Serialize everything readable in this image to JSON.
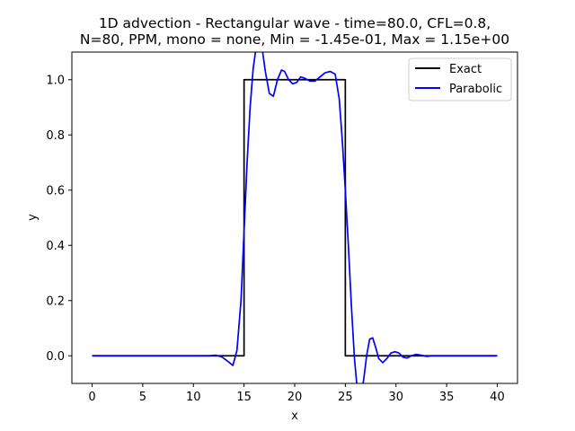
{
  "chart_data": {
    "type": "line",
    "title_line1": "1D advection - Rectangular wave - time=80.0, CFL=0.8,",
    "title_line2": "N=80, PPM, mono = none, Min = -1.45e-01, Max = 1.15e+00",
    "xlabel": "x",
    "ylabel": "y",
    "xlim": [
      -2,
      42
    ],
    "ylim": [
      -0.1,
      1.1
    ],
    "xticks": [
      0,
      5,
      10,
      15,
      20,
      25,
      30,
      35,
      40
    ],
    "xtick_labels": [
      "0",
      "5",
      "10",
      "15",
      "20",
      "25",
      "30",
      "35",
      "40"
    ],
    "yticks": [
      0.0,
      0.2,
      0.4,
      0.6,
      0.8,
      1.0
    ],
    "ytick_labels": [
      "0.0",
      "0.2",
      "0.4",
      "0.6",
      "0.8",
      "1.0"
    ],
    "legend_position": "top-right",
    "series": [
      {
        "name": "Exact",
        "color": "#000000",
        "x": [
          0,
          15,
          15,
          25,
          25,
          40
        ],
        "y": [
          0,
          0,
          1,
          1,
          0,
          0
        ]
      },
      {
        "name": "Parabolic",
        "color": "#0000ff",
        "x": [
          0,
          10,
          11.5,
          12.2,
          12.8,
          13.4,
          13.9,
          14.3,
          14.7,
          15.0,
          15.3,
          15.6,
          15.9,
          16.2,
          16.5,
          16.8,
          17.1,
          17.5,
          17.9,
          18.3,
          18.7,
          19.0,
          19.4,
          19.8,
          20.2,
          20.6,
          21.0,
          21.5,
          22.0,
          22.5,
          23.0,
          23.5,
          24.0,
          24.4,
          24.7,
          25.0,
          25.3,
          25.6,
          25.9,
          26.2,
          26.5,
          26.8,
          27.1,
          27.4,
          27.7,
          28.0,
          28.3,
          28.7,
          29.1,
          29.5,
          29.9,
          30.3,
          30.7,
          31.1,
          31.5,
          32.0,
          32.5,
          33.0,
          33.5,
          34.0,
          35.0,
          40.0
        ],
        "y": [
          0.0,
          0.0,
          0.0,
          0.002,
          -0.004,
          -0.02,
          -0.035,
          0.02,
          0.2,
          0.45,
          0.7,
          0.9,
          1.04,
          1.12,
          1.15,
          1.11,
          1.03,
          0.95,
          0.94,
          1.0,
          1.035,
          1.03,
          1.0,
          0.985,
          0.99,
          1.01,
          1.005,
          0.995,
          0.995,
          1.01,
          1.025,
          1.03,
          1.02,
          0.93,
          0.78,
          0.6,
          0.4,
          0.18,
          -0.01,
          -0.13,
          -0.145,
          -0.09,
          0.0,
          0.06,
          0.065,
          0.03,
          -0.01,
          -0.025,
          -0.01,
          0.01,
          0.015,
          0.01,
          -0.005,
          -0.008,
          0.0,
          0.005,
          0.002,
          -0.002,
          0.0,
          0.0,
          0.0,
          0.0
        ]
      }
    ]
  }
}
